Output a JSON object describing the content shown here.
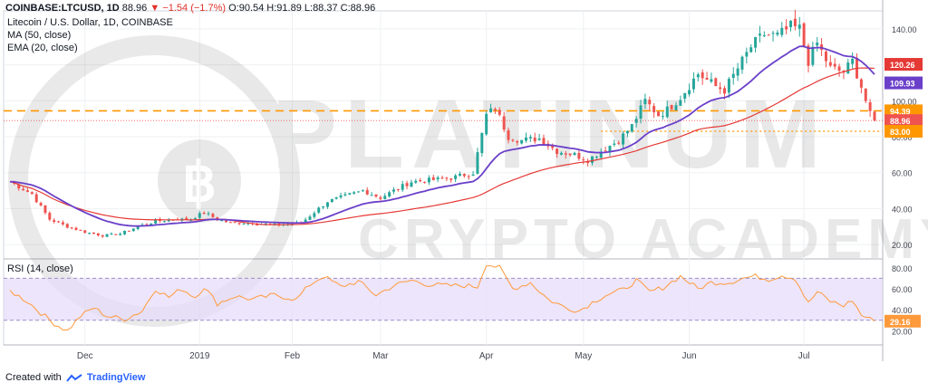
{
  "header": {
    "symbol": "COINBASE:LTCUSD, 1D",
    "last": "88.96",
    "arrow": "▼",
    "change": "−1.54 (−1.7%)",
    "o": "O:90.54",
    "h": "H:91.89",
    "l": "L:88.37",
    "c": "C:88.96"
  },
  "indicators": {
    "title": "Litecoin / U.S. Dollar, 1D, COINBASE",
    "ma": "MA (50, close)",
    "ema": "EMA (20, close)",
    "rsi": "RSI (14, close)"
  },
  "watermark": {
    "line1": "PLATINUM",
    "line2": "CRYPTO ACADEMY"
  },
  "footer": {
    "created_with": "Created with",
    "brand": "TradingView"
  },
  "colors": {
    "up": "#26a69a",
    "down": "#ef5350",
    "ma50": "#e53935",
    "ema20": "#6a3fc9",
    "level": "#ff9800",
    "rsi": "#ff9a3c",
    "rsi_band": "#e6dafa"
  },
  "chart_data": {
    "type": "line",
    "x_ticks": [
      {
        "label": "Dec",
        "i": 17
      },
      {
        "label": "2019",
        "i": 43
      },
      {
        "label": "Feb",
        "i": 64
      },
      {
        "label": "Mar",
        "i": 84
      },
      {
        "label": "Apr",
        "i": 108
      },
      {
        "label": "May",
        "i": 130
      },
      {
        "label": "Jun",
        "i": 154
      },
      {
        "label": "Jul",
        "i": 180
      }
    ],
    "price_axis": {
      "ticks": [
        20,
        40,
        60,
        80,
        100,
        120,
        140
      ],
      "ylim": [
        12,
        150
      ]
    },
    "price_labels": [
      {
        "value": 120.26,
        "text": "120.26",
        "color": "#e53935"
      },
      {
        "value": 109.93,
        "text": "109.93",
        "color": "#6a3fc9"
      },
      {
        "value": 94.39,
        "text": "94.39",
        "color": "#ff9800"
      },
      {
        "value": 88.96,
        "text": "88.96",
        "color": "#ef5350"
      },
      {
        "value": 83.0,
        "text": "83.00",
        "color": "#ff9800"
      }
    ],
    "horizontal_levels": [
      {
        "value": 94.39,
        "style": "dashed"
      },
      {
        "value": 83.0,
        "style": "dotted",
        "from_i": 134
      }
    ],
    "close_anchors": [
      [
        0,
        55
      ],
      [
        5,
        48
      ],
      [
        9,
        34
      ],
      [
        13,
        30
      ],
      [
        17,
        27
      ],
      [
        21,
        25
      ],
      [
        25,
        26
      ],
      [
        29,
        30
      ],
      [
        33,
        33
      ],
      [
        37,
        34
      ],
      [
        41,
        34
      ],
      [
        44,
        38
      ],
      [
        47,
        34
      ],
      [
        50,
        32
      ],
      [
        55,
        32
      ],
      [
        60,
        31
      ],
      [
        66,
        32
      ],
      [
        69,
        38
      ],
      [
        72,
        44
      ],
      [
        76,
        47
      ],
      [
        80,
        50
      ],
      [
        84,
        46
      ],
      [
        87,
        50
      ],
      [
        91,
        55
      ],
      [
        96,
        56
      ],
      [
        100,
        57
      ],
      [
        105,
        60
      ],
      [
        108,
        92
      ],
      [
        110,
        96
      ],
      [
        113,
        80
      ],
      [
        116,
        78
      ],
      [
        120,
        79
      ],
      [
        124,
        72
      ],
      [
        128,
        70
      ],
      [
        131,
        67
      ],
      [
        134,
        72
      ],
      [
        138,
        78
      ],
      [
        141,
        86
      ],
      [
        144,
        100
      ],
      [
        147,
        92
      ],
      [
        149,
        95
      ],
      [
        152,
        102
      ],
      [
        156,
        115
      ],
      [
        160,
        108
      ],
      [
        162,
        106
      ],
      [
        165,
        118
      ],
      [
        168,
        130
      ],
      [
        171,
        137
      ],
      [
        174,
        136
      ],
      [
        177,
        141
      ],
      [
        179,
        140
      ],
      [
        181,
        122
      ],
      [
        183,
        132
      ],
      [
        186,
        118
      ],
      [
        189,
        116
      ],
      [
        191,
        122
      ],
      [
        193,
        108
      ],
      [
        195,
        92
      ],
      [
        196,
        88.96
      ]
    ],
    "rsi": {
      "label": "RSI (14, close)",
      "ticks": [
        20,
        40,
        60,
        80
      ],
      "band": [
        30,
        70
      ],
      "ylim": [
        10,
        85
      ],
      "last": 29.16,
      "anchors": [
        [
          0,
          58
        ],
        [
          4,
          48
        ],
        [
          7,
          37
        ],
        [
          10,
          27
        ],
        [
          13,
          20
        ],
        [
          16,
          34
        ],
        [
          19,
          42
        ],
        [
          22,
          34
        ],
        [
          26,
          31
        ],
        [
          30,
          39
        ],
        [
          33,
          60
        ],
        [
          36,
          52
        ],
        [
          39,
          60
        ],
        [
          42,
          52
        ],
        [
          44,
          62
        ],
        [
          47,
          46
        ],
        [
          51,
          53
        ],
        [
          55,
          50
        ],
        [
          60,
          54
        ],
        [
          65,
          50
        ],
        [
          68,
          64
        ],
        [
          71,
          72
        ],
        [
          75,
          62
        ],
        [
          79,
          67
        ],
        [
          83,
          54
        ],
        [
          87,
          63
        ],
        [
          91,
          68
        ],
        [
          95,
          64
        ],
        [
          99,
          63
        ],
        [
          103,
          63
        ],
        [
          106,
          62
        ],
        [
          108,
          84
        ],
        [
          111,
          80
        ],
        [
          114,
          60
        ],
        [
          118,
          66
        ],
        [
          122,
          50
        ],
        [
          126,
          42
        ],
        [
          129,
          39
        ],
        [
          132,
          47
        ],
        [
          135,
          54
        ],
        [
          139,
          59
        ],
        [
          142,
          68
        ],
        [
          145,
          57
        ],
        [
          148,
          61
        ],
        [
          152,
          72
        ],
        [
          156,
          60
        ],
        [
          159,
          66
        ],
        [
          163,
          66
        ],
        [
          166,
          70
        ],
        [
          169,
          72
        ],
        [
          172,
          69
        ],
        [
          175,
          73
        ],
        [
          178,
          70
        ],
        [
          181,
          46
        ],
        [
          183,
          57
        ],
        [
          186,
          48
        ],
        [
          189,
          44
        ],
        [
          191,
          49
        ],
        [
          193,
          35
        ],
        [
          195,
          31
        ],
        [
          196,
          29.16
        ]
      ]
    }
  }
}
